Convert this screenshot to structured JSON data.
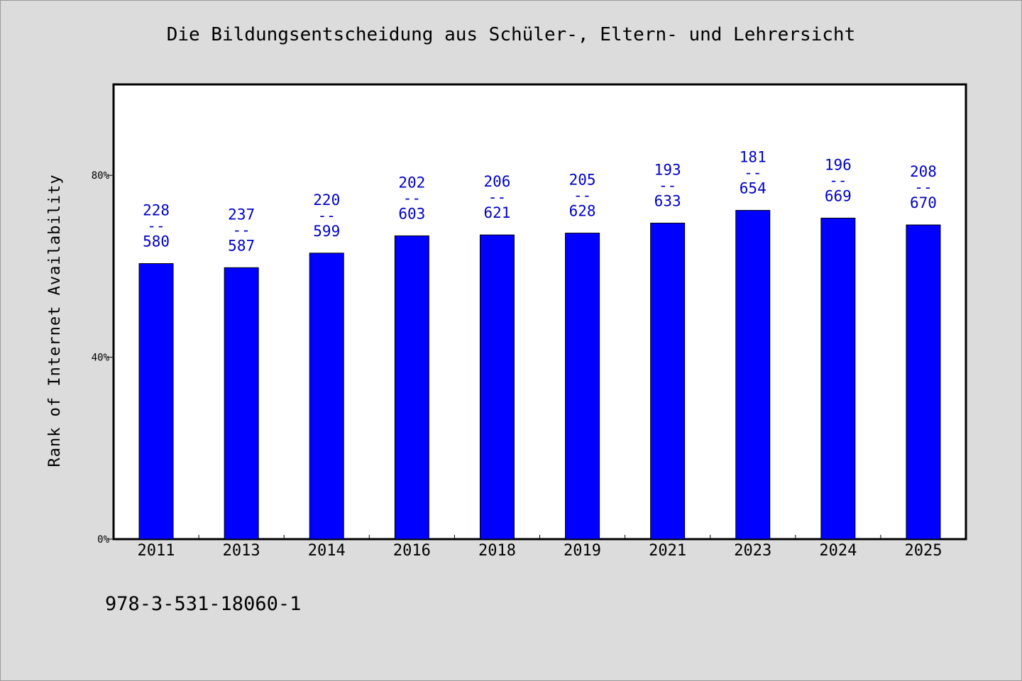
{
  "chart_data": {
    "type": "bar",
    "title": "Die Bildungsentscheidung aus Schüler-, Eltern- und Lehrersicht",
    "xlabel": "",
    "ylabel": "Rank of Internet Availability",
    "ylim": [
      0,
      100
    ],
    "yticks": [
      {
        "value": 0,
        "label": "0%"
      },
      {
        "value": 40,
        "label": "40%"
      },
      {
        "value": 80,
        "label": "80%"
      }
    ],
    "categories": [
      "2011",
      "2013",
      "2014",
      "2016",
      "2018",
      "2019",
      "2021",
      "2023",
      "2024",
      "2025"
    ],
    "values": [
      60.6,
      59.7,
      62.9,
      66.7,
      66.9,
      67.3,
      69.5,
      72.3,
      70.6,
      69.1
    ],
    "value_labels": [
      {
        "top": "228",
        "sep": "--",
        "bottom": "580"
      },
      {
        "top": "237",
        "sep": "--",
        "bottom": "587"
      },
      {
        "top": "220",
        "sep": "--",
        "bottom": "599"
      },
      {
        "top": "202",
        "sep": "--",
        "bottom": "603"
      },
      {
        "top": "206",
        "sep": "--",
        "bottom": "621"
      },
      {
        "top": "205",
        "sep": "--",
        "bottom": "628"
      },
      {
        "top": "193",
        "sep": "--",
        "bottom": "633"
      },
      {
        "top": "181",
        "sep": "--",
        "bottom": "654"
      },
      {
        "top": "196",
        "sep": "--",
        "bottom": "669"
      },
      {
        "top": "208",
        "sep": "--",
        "bottom": "670"
      }
    ],
    "bar_color": "#0000ff",
    "label_color": "#0000c8",
    "grid": false
  },
  "footer": {
    "isbn": "978-3-531-18060-1"
  }
}
